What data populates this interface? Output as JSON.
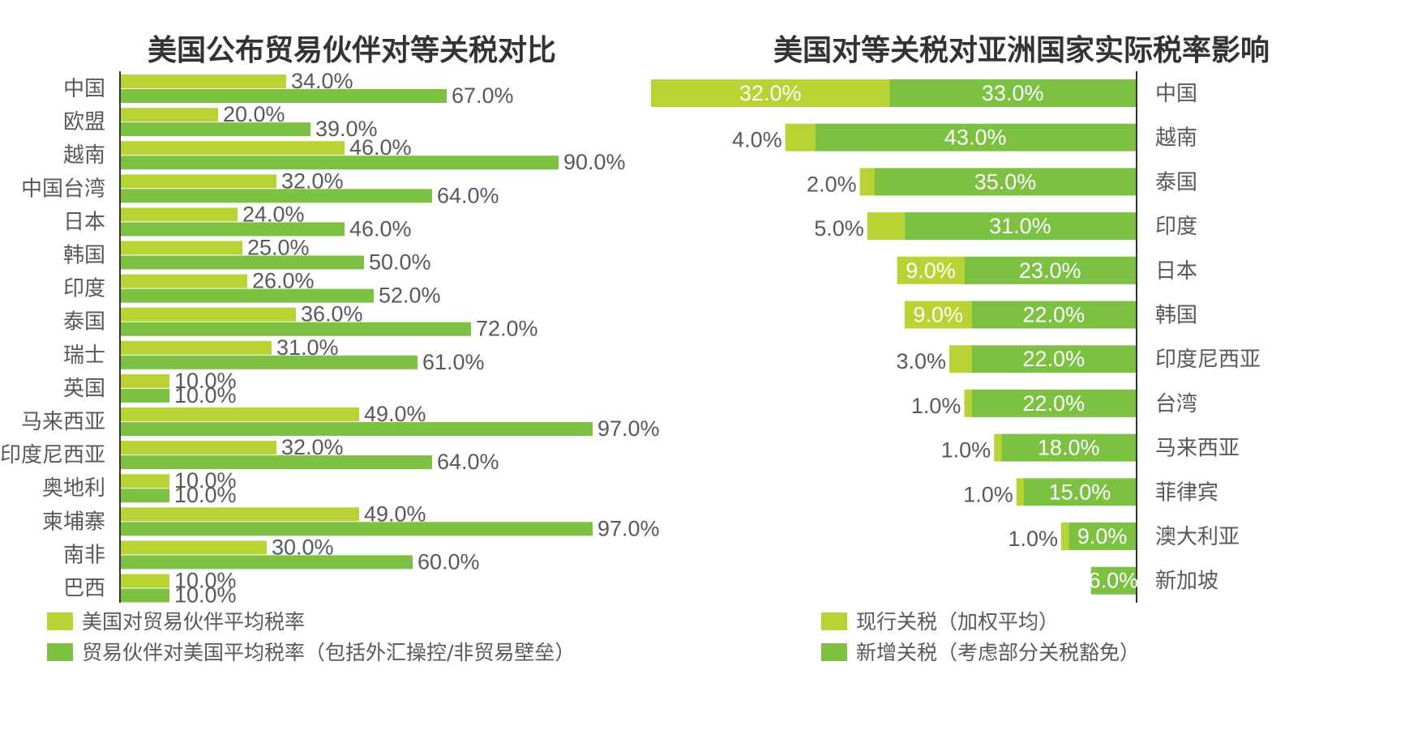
{
  "colors": {
    "light": "#b8d434",
    "dark": "#7cc142",
    "axis": "#333333"
  },
  "chart_data": [
    {
      "type": "bar",
      "orientation": "horizontal",
      "title": "美国公布贸易伙伴对等关税对比",
      "categories": [
        "中国",
        "欧盟",
        "越南",
        "中国台湾",
        "日本",
        "韩国",
        "印度",
        "泰国",
        "瑞士",
        "英国",
        "马来西亚",
        "印度尼西亚",
        "奥地利",
        "柬埔寨",
        "南非",
        "巴西"
      ],
      "series": [
        {
          "name": "美国对贸易伙伴平均税率",
          "values": [
            34.0,
            20.0,
            46.0,
            32.0,
            24.0,
            25.0,
            26.0,
            36.0,
            31.0,
            10.0,
            49.0,
            32.0,
            10.0,
            49.0,
            30.0,
            10.0
          ],
          "labels": [
            "34.0%",
            "20.0%",
            "46.0%",
            "32.0%",
            "24.0%",
            "25.0%",
            "26.0%",
            "36.0%",
            "31.0%",
            "10.0%",
            "49.0%",
            "32.0%",
            "10.0%",
            "49.0%",
            "30.0%",
            "10.0%"
          ]
        },
        {
          "name": "贸易伙伴对美国平均税率（包括外汇操控/非贸易壁垒）",
          "values": [
            67.0,
            39.0,
            90.0,
            64.0,
            46.0,
            50.0,
            52.0,
            72.0,
            61.0,
            10.0,
            97.0,
            64.0,
            10.0,
            97.0,
            60.0,
            10.0
          ],
          "labels": [
            "67.0%",
            "39.0%",
            "90.0%",
            "64.0%",
            "46.0%",
            "50.0%",
            "52.0%",
            "72.0%",
            "61.0%",
            "10.0%",
            "97.0%",
            "64.0%",
            "10.0%",
            "97.0%",
            "60.0%",
            "10.0%"
          ]
        }
      ],
      "xlim": [
        0,
        100
      ],
      "legend": [
        {
          "label": "美国对贸易伙伴平均税率",
          "color": "light"
        },
        {
          "label": "贸易伙伴对美国平均税率（包括外汇操控/非贸易壁垒）",
          "color": "dark"
        }
      ],
      "legend_position": "bottom-left"
    },
    {
      "type": "bar",
      "orientation": "horizontal",
      "stacked": true,
      "direction": "right-to-left",
      "title": "美国对等关税对亚洲国家实际税率影响",
      "categories": [
        "中国",
        "越南",
        "泰国",
        "印度",
        "日本",
        "韩国",
        "印度尼西亚",
        "台湾",
        "马来西亚",
        "菲律宾",
        "澳大利亚",
        "新加坡"
      ],
      "series": [
        {
          "name": "现行关税（加权平均）",
          "values": [
            32.0,
            4.0,
            2.0,
            5.0,
            9.0,
            9.0,
            3.0,
            1.0,
            1.0,
            1.0,
            1.0,
            0.0
          ],
          "labels": [
            "32.0%",
            "4.0%",
            "2.0%",
            "5.0%",
            "9.0%",
            "9.0%",
            "3.0%",
            "1.0%",
            "1.0%",
            "1.0%",
            "1.0%",
            ""
          ]
        },
        {
          "name": "新增关税（考虑部分关税豁免）",
          "values": [
            33.0,
            43.0,
            35.0,
            31.0,
            23.0,
            22.0,
            22.0,
            22.0,
            18.0,
            15.0,
            9.0,
            6.0
          ],
          "labels": [
            "33.0%",
            "43.0%",
            "35.0%",
            "31.0%",
            "23.0%",
            "22.0%",
            "22.0%",
            "22.0%",
            "18.0%",
            "15.0%",
            "9.0%",
            "6.0%"
          ]
        }
      ],
      "xlim": [
        0,
        65
      ],
      "legend": [
        {
          "label": "现行关税（加权平均）",
          "color": "light"
        },
        {
          "label": "新增关税（考虑部分关税豁免）",
          "color": "dark"
        }
      ],
      "legend_position": "bottom-left"
    }
  ]
}
